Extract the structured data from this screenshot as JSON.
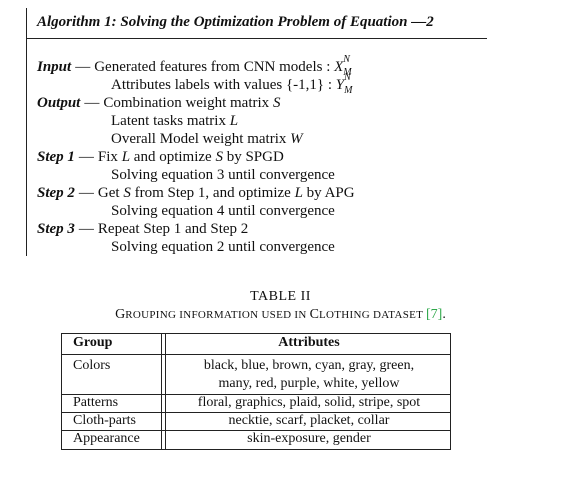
{
  "algorithm": {
    "title": "Algorithm 1: Solving the Optimization Problem of Equation —2",
    "input": {
      "label": "Input",
      "line1_text": "Generated features from CNN models : ",
      "line1_symbol": "X",
      "line1_sup": "N",
      "line1_sub": "M",
      "line2_text": "Attributes labels with values {-1,1} : ",
      "line2_symbol": "Y",
      "line2_sup": "N",
      "line2_sub": "M"
    },
    "output": {
      "label": "Output",
      "line1_text": "Combination weight matrix ",
      "line1_symbol": "S",
      "line2_text": "Latent tasks matrix ",
      "line2_symbol": "L",
      "line3_text": "Overall Model weight matrix ",
      "line3_symbol": "W"
    },
    "step1": {
      "label": "Step 1",
      "line1_a": "Fix ",
      "line1_s1": "L",
      "line1_b": " and optimize ",
      "line1_s2": "S",
      "line1_c": " by SPGD",
      "line2": "Solving equation 3 until convergence"
    },
    "step2": {
      "label": "Step 2",
      "line1_a": "Get ",
      "line1_s1": "S",
      "line1_b": " from Step 1, and optimize ",
      "line1_s2": "L",
      "line1_c": " by APG",
      "line2": "Solving equation 4 until convergence"
    },
    "step3": {
      "label": "Step 3",
      "line1": "Repeat Step 1 and Step 2",
      "line2": "Solving equation 2 until convergence"
    },
    "dash": "—"
  },
  "table": {
    "label": "TABLE II",
    "caption": {
      "G": "G",
      "rouping_information_used_in": "ROUPING INFORMATION USED IN ",
      "C": "C",
      "lothing_dataset": "LOTHING DATASET ",
      "cite": "[7]",
      "end": "."
    },
    "headers": [
      "Group",
      "Attributes"
    ],
    "rows": [
      {
        "group": "Colors",
        "attributes": [
          "black, blue, brown, cyan, gray, green,",
          "many, red, purple, white, yellow"
        ]
      },
      {
        "group": "Patterns",
        "attributes": [
          "floral, graphics, plaid, solid, stripe, spot"
        ]
      },
      {
        "group": "Cloth-parts",
        "attributes": [
          "necktie, scarf, placket, collar"
        ]
      },
      {
        "group": "Appearance",
        "attributes": [
          "skin-exposure, gender"
        ]
      }
    ]
  },
  "colors": {
    "text": "#111111",
    "rule": "#222222",
    "cite": "#2ea84a"
  }
}
